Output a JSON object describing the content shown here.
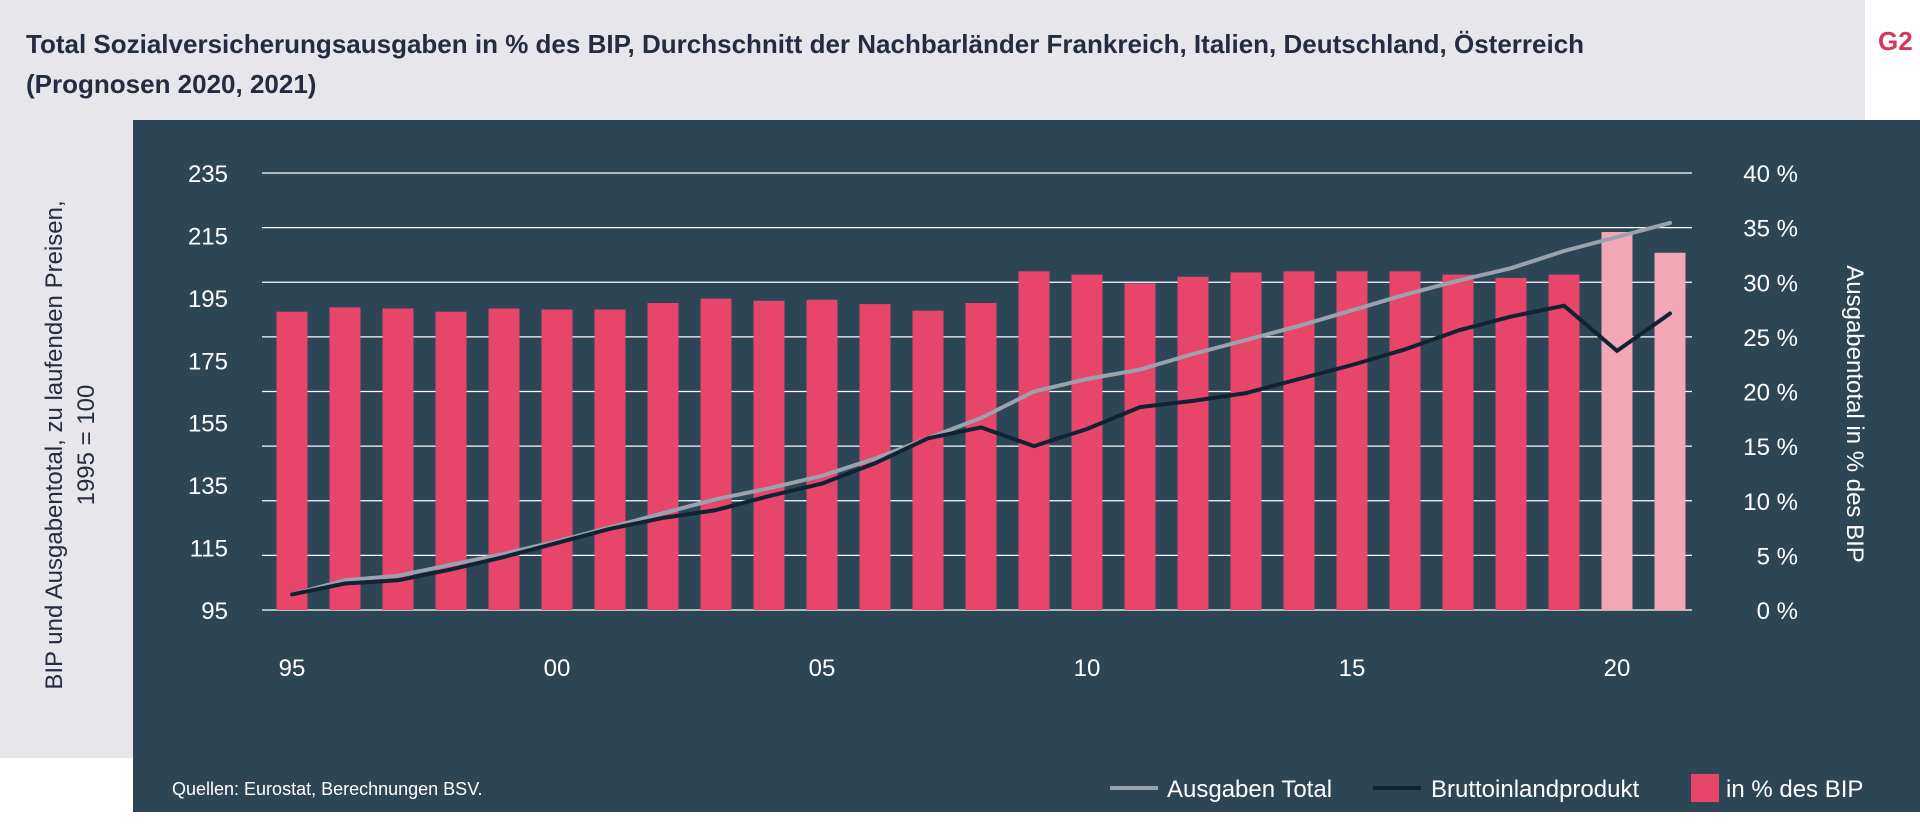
{
  "header": {
    "title_line1": "Total Sozialversicherungsausgaben in % des BIP, Durchschnitt der Nachbarländer Frankreich, Italien, Deutschland, Österreich",
    "title_line2": "(Prognosen 2020, 2021)",
    "figure_tag": "G2"
  },
  "source": "Quellen: Eurostat, Berechnungen BSV.",
  "colors": {
    "panel_background": "#2d4656",
    "title_band": "#e6e6eb",
    "bar": "#e8456b",
    "bar_forecast": "#f2a7b6",
    "ausgaben_line": "#9aa3ad",
    "bip_line": "#0f2333",
    "figure_tag": "#d8365a"
  },
  "chart_data": {
    "type": "bar",
    "x": [
      1995,
      1996,
      1997,
      1998,
      1999,
      2000,
      2001,
      2002,
      2003,
      2004,
      2005,
      2006,
      2007,
      2008,
      2009,
      2010,
      2011,
      2012,
      2013,
      2014,
      2015,
      2016,
      2017,
      2018,
      2019,
      2020,
      2021
    ],
    "forecast_years": [
      2020,
      2021
    ],
    "x_ticks": [
      1995,
      2000,
      2005,
      2010,
      2015,
      2020
    ],
    "x_tick_labels": [
      "95",
      "00",
      "05",
      "10",
      "15",
      "20"
    ],
    "y_left": {
      "label_line1": "BIP und Ausgabentotal, zu laufenden Preisen,",
      "label_line2": "1995 = 100",
      "lim": [
        95,
        235
      ],
      "ticks": [
        95,
        115,
        135,
        155,
        175,
        195,
        215,
        235
      ]
    },
    "y_right": {
      "label": "Ausgabentotal in % des BIP",
      "lim": [
        0,
        40
      ],
      "ticks": [
        0,
        5,
        10,
        15,
        20,
        25,
        30,
        35,
        40
      ],
      "tick_labels": [
        "0 %",
        "5 %",
        "10 %",
        "15 %",
        "20 %",
        "25 %",
        "30 %",
        "35 %",
        "40 %"
      ]
    },
    "grid": true,
    "legend_position": "bottom-right",
    "series": [
      {
        "name": "Ausgaben Total",
        "kind": "line",
        "axis": "left",
        "values": [
          100,
          104.5,
          106,
          109.5,
          113,
          117,
          121.5,
          126,
          130.5,
          134,
          138,
          143.5,
          150,
          156.5,
          165,
          169,
          172,
          177,
          181.5,
          186,
          191,
          196,
          200.5,
          204.5,
          210,
          214.5,
          219
        ]
      },
      {
        "name": "Bruttoinlandprodukt",
        "kind": "line",
        "axis": "left",
        "values": [
          100,
          103.5,
          104.5,
          108,
          112,
          116.5,
          121,
          124.5,
          127,
          131.5,
          135.5,
          142,
          150,
          153.5,
          147.5,
          153,
          160,
          162,
          164.5,
          169,
          173.5,
          178.5,
          184.5,
          189,
          192.5,
          178,
          190
        ]
      },
      {
        "name": "in % des BIP",
        "kind": "bar",
        "axis": "right",
        "values": [
          27.3,
          27.7,
          27.6,
          27.3,
          27.6,
          27.5,
          27.5,
          28.1,
          28.5,
          28.3,
          28.4,
          28.0,
          27.4,
          28.1,
          31.0,
          30.7,
          29.9,
          30.5,
          30.9,
          31.0,
          31.0,
          31.0,
          30.7,
          30.4,
          30.7,
          34.6,
          32.7
        ]
      }
    ]
  }
}
